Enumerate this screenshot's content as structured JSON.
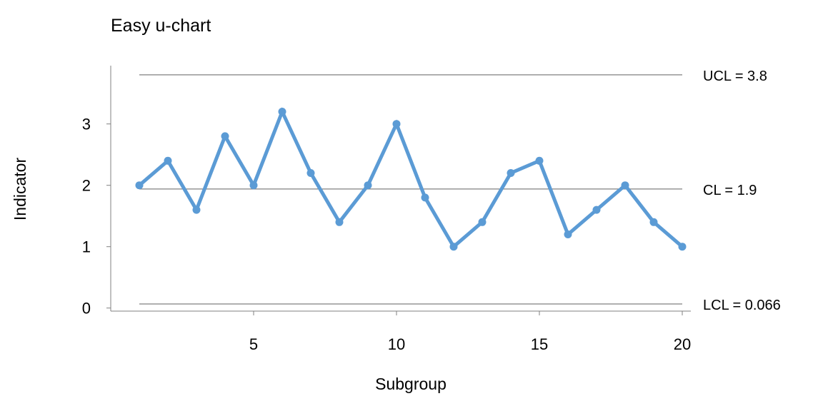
{
  "chart_data": {
    "type": "line",
    "title": "Easy u-chart",
    "xlabel": "Subgroup",
    "ylabel": "Indicator",
    "x": [
      1,
      2,
      3,
      4,
      5,
      6,
      7,
      8,
      9,
      10,
      11,
      12,
      13,
      14,
      15,
      16,
      17,
      18,
      19,
      20
    ],
    "series": [
      {
        "values": [
          2.0,
          2.4,
          1.6,
          2.8,
          2.0,
          3.2,
          2.2,
          1.4,
          2.0,
          3.0,
          1.8,
          1.0,
          1.4,
          2.2,
          2.4,
          1.2,
          1.6,
          2.0,
          1.4,
          1.0
        ]
      }
    ],
    "control_limits": [
      {
        "name": "UCL",
        "label": "UCL = 3.8",
        "value": 3.8
      },
      {
        "name": "CL",
        "label": "CL = 1.9",
        "value": 1.94
      },
      {
        "name": "LCL",
        "label": "LCL = 0.066",
        "value": 0.066
      }
    ],
    "xlim": [
      0.0,
      20.3
    ],
    "ylim": [
      -0.05,
      3.95
    ],
    "x_ticks": [
      5,
      10,
      15,
      20
    ],
    "y_ticks": [
      0,
      1,
      2,
      3
    ],
    "grid": false,
    "legend": "none",
    "colors": {
      "series": "#5B9BD5",
      "limits": "#808080",
      "axis": "#808080"
    }
  }
}
